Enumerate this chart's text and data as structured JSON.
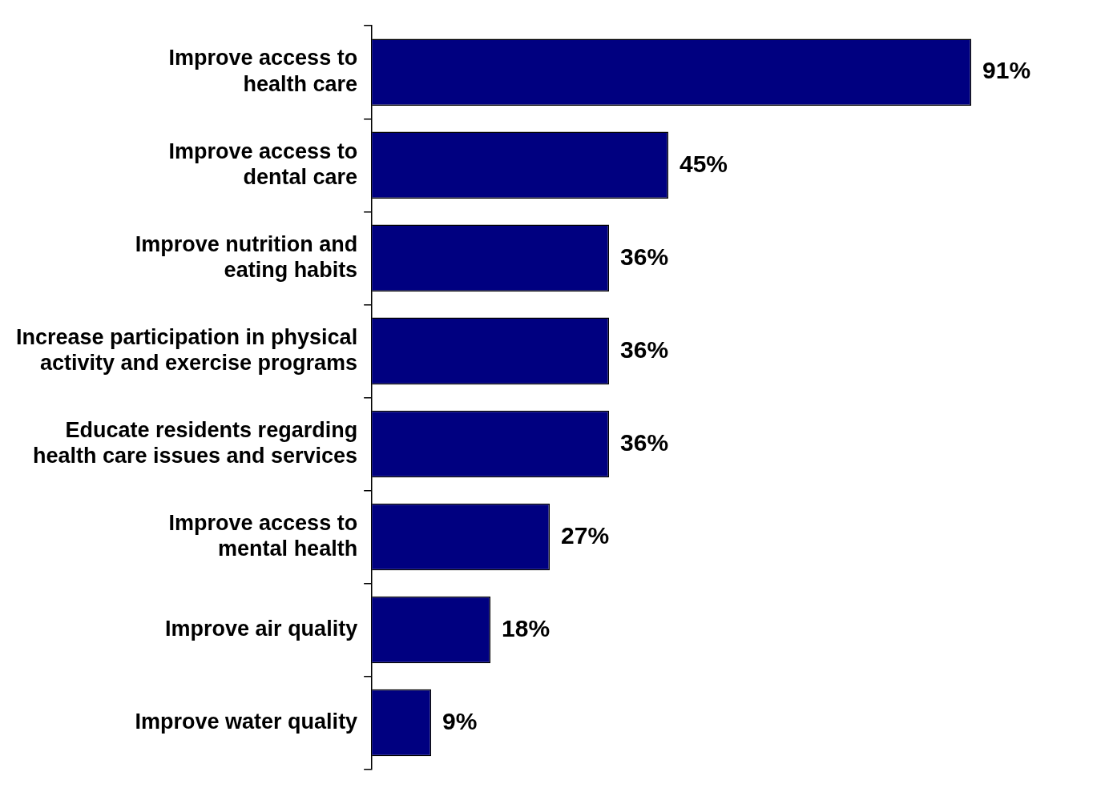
{
  "chart_data": {
    "type": "bar",
    "orientation": "horizontal",
    "categories": [
      "Improve access to\nhealth care",
      "Improve access to\ndental care",
      "Improve nutrition and\neating habits",
      "Increase participation in physical\nactivity and exercise programs",
      "Educate residents regarding\nhealth care issues and services",
      "Improve access to\nmental health",
      "Improve air quality",
      "Improve water quality"
    ],
    "values": [
      91,
      45,
      36,
      36,
      36,
      27,
      18,
      9
    ],
    "value_labels": [
      "91%",
      "45%",
      "36%",
      "36%",
      "36%",
      "27%",
      "18%",
      "9%"
    ],
    "color": "#000080",
    "legend": false,
    "tick_labels": "y"
  }
}
